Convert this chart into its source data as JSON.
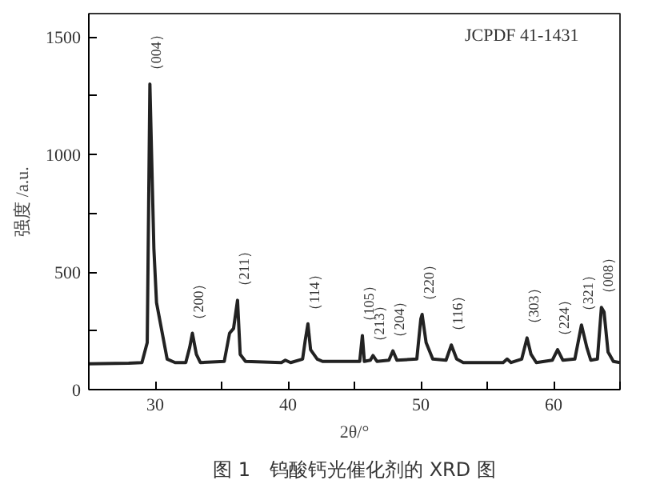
{
  "chart_data": {
    "type": "line",
    "title": "图 1　钨酸钙光催化剂的 XRD 图",
    "xlabel": "2θ/°",
    "ylabel": "强度 /a.u.",
    "x": [
      25,
      28,
      29,
      29.4,
      29.6,
      29.9,
      30.1,
      30.5,
      30.9,
      31.5,
      32.3,
      32.6,
      32.8,
      33.1,
      33.4,
      35.2,
      35.6,
      35.9,
      36.2,
      36.4,
      36.8,
      39.5,
      39.8,
      40.2,
      41.1,
      41.3,
      41.5,
      41.7,
      42.2,
      42.6,
      45.4,
      45.6,
      45.75,
      46.2,
      46.4,
      46.7,
      47.6,
      47.9,
      48.2,
      49.7,
      50.0,
      50.1,
      50.4,
      50.9,
      51.9,
      52.3,
      52.7,
      53.2,
      56.2,
      56.5,
      56.8,
      57.6,
      58.0,
      58.3,
      58.7,
      59.9,
      60.3,
      60.7,
      61.6,
      62.1,
      62.5,
      62.8,
      63.3,
      63.6,
      63.8,
      64.1,
      64.5,
      65
    ],
    "series": [
      {
        "color": "#222222",
        "values": [
          110,
          112,
          115,
          200,
          1300,
          600,
          370,
          250,
          130,
          115,
          115,
          180,
          240,
          150,
          115,
          120,
          240,
          260,
          380,
          150,
          120,
          115,
          125,
          115,
          130,
          210,
          280,
          170,
          130,
          120,
          120,
          230,
          120,
          125,
          145,
          120,
          125,
          165,
          125,
          130,
          300,
          320,
          200,
          130,
          125,
          190,
          130,
          115,
          115,
          130,
          115,
          130,
          220,
          150,
          115,
          125,
          170,
          125,
          130,
          275,
          180,
          125,
          130,
          350,
          330,
          160,
          120,
          115
        ]
      }
    ],
    "xlim": [
      25,
      65
    ],
    "ylim": [
      0,
      1600
    ],
    "xticks": [
      30,
      {
        "value": 35,
        "label": null
      },
      40,
      {
        "value": 45,
        "label": null
      },
      50,
      {
        "value": 55,
        "label": null
      },
      60,
      {
        "value": 65,
        "label": null
      }
    ],
    "yticks": [
      0,
      {
        "value": 250,
        "label": null
      },
      500,
      {
        "value": 750,
        "label": null
      },
      1000,
      {
        "value": 1250,
        "label": null
      },
      1500
    ],
    "grid": false,
    "marker": "none",
    "line_style": "solid",
    "annotations": [
      {
        "text": "（004）",
        "x": 29.6,
        "y": 1300
      },
      {
        "text": "（200）",
        "x": 32.8,
        "y": 240
      },
      {
        "text": "（211）",
        "x": 36.2,
        "y": 380
      },
      {
        "text": "（114）",
        "x": 41.5,
        "y": 280
      },
      {
        "text": "（105）",
        "x": 45.6,
        "y": 230
      },
      {
        "text": "（213）",
        "x": 46.4,
        "y": 145
      },
      {
        "text": "（204）",
        "x": 47.9,
        "y": 165
      },
      {
        "text": "（220）",
        "x": 50.1,
        "y": 320
      },
      {
        "text": "（116）",
        "x": 52.3,
        "y": 190
      },
      {
        "text": "（303）",
        "x": 58.0,
        "y": 220
      },
      {
        "text": "（224）",
        "x": 60.3,
        "y": 170
      },
      {
        "text": "（321）",
        "x": 62.1,
        "y": 275
      },
      {
        "text": "（008）",
        "x": 63.6,
        "y": 350
      },
      "JCPDF 41-1431"
    ]
  }
}
